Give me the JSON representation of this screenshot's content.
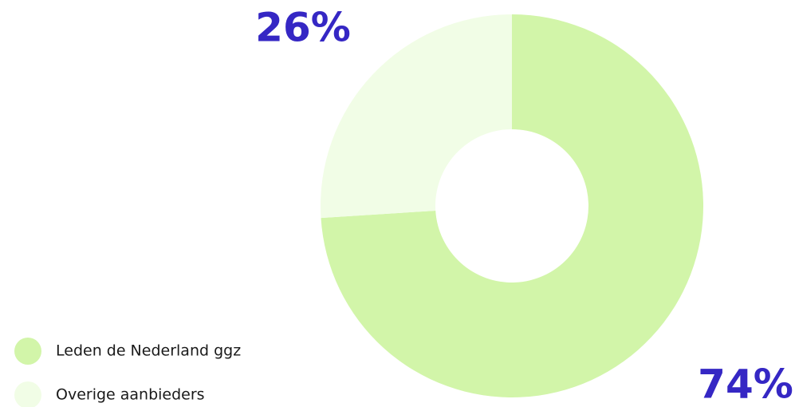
{
  "chart_data": {
    "type": "pie",
    "donut": true,
    "categories": [
      "Leden de Nederland ggz",
      "Overige aanbieders"
    ],
    "values": [
      74,
      26
    ],
    "value_labels": [
      "74%",
      "26%"
    ],
    "colors": [
      "#d2f5a9",
      "#f1fde6"
    ]
  }
}
